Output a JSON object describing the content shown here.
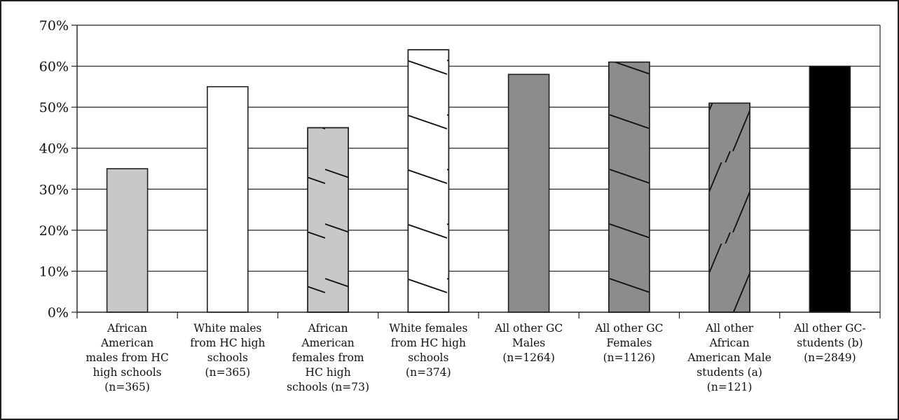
{
  "chart_data": {
    "type": "bar",
    "title": "",
    "xlabel": "",
    "ylabel": "",
    "ylim": [
      0,
      70
    ],
    "y_ticks": [
      "0%",
      "10%",
      "20%",
      "30%",
      "40%",
      "50%",
      "60%",
      "70%"
    ],
    "grid": true,
    "legend": "none",
    "categories": [
      [
        "African",
        "American",
        "males from HC",
        "high schools",
        "(n=365)"
      ],
      [
        "White males",
        "from HC high",
        "schools",
        "(n=365)"
      ],
      [
        "African",
        "American",
        "females from",
        "HC high",
        "schools (n=73)"
      ],
      [
        "White females",
        "from HC high",
        "schools",
        "(n=374)"
      ],
      [
        "All other GC",
        "Males",
        "(n=1264)"
      ],
      [
        "All other GC",
        "Females",
        "(n=1126)"
      ],
      [
        "All other",
        "African",
        "American Male",
        "students (a)",
        "(n=121)"
      ],
      [
        "All other GC-",
        "students (b)",
        "(n=2849)"
      ]
    ],
    "values": [
      35,
      55,
      45,
      64,
      58,
      61,
      51,
      60
    ],
    "bar_styles": [
      {
        "fill": "#c8c8c8",
        "pattern": "none"
      },
      {
        "fill": "#ffffff",
        "pattern": "none"
      },
      {
        "fill": "#c8c8c8",
        "pattern": "diagonal-down"
      },
      {
        "fill": "#ffffff",
        "pattern": "diagonal-down"
      },
      {
        "fill": "#8c8c8c",
        "pattern": "none"
      },
      {
        "fill": "#8c8c8c",
        "pattern": "diagonal-down"
      },
      {
        "fill": "#8c8c8c",
        "pattern": "steep-up"
      },
      {
        "fill": "#000000",
        "pattern": "none"
      }
    ]
  }
}
